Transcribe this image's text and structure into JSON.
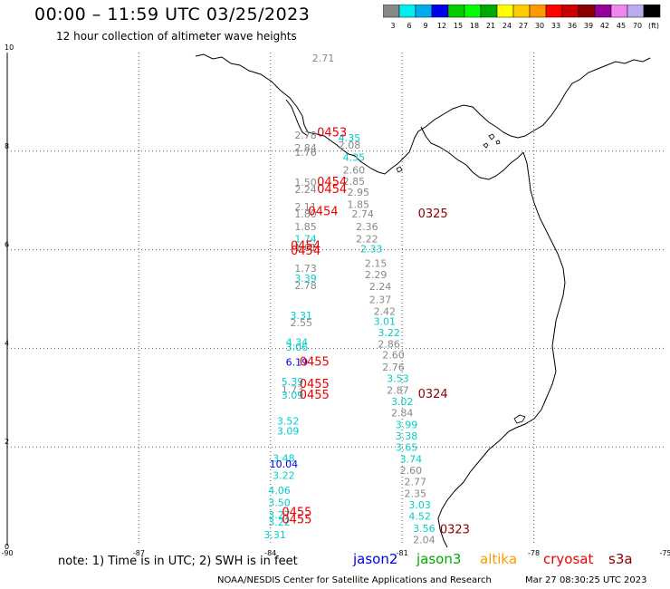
{
  "header": {
    "title": "00:00 – 11:59 UTC 03/25/2023",
    "subtitle": "12 hour collection of altimeter wave heights"
  },
  "colorbar": {
    "labels": [
      "3",
      "6",
      "9",
      "12",
      "15",
      "18",
      "21",
      "24",
      "27",
      "30",
      "33",
      "36",
      "39",
      "42",
      "45",
      "70",
      "(ft)"
    ],
    "colors": [
      "#888888",
      "#00eeee",
      "#00aaee",
      "#0000ee",
      "#00cc00",
      "#00ff00",
      "#00aa00",
      "#ffff00",
      "#ffcc00",
      "#ff9900",
      "#ff0000",
      "#cc0000",
      "#880000",
      "#990099",
      "#ee88ee",
      "#bbaaee",
      "#000000"
    ]
  },
  "axes": {
    "lon_labels": [
      "-90",
      "-87",
      "-84",
      "-81",
      "-78",
      "-75"
    ],
    "lat_labels": [
      "10",
      "8",
      "6",
      "4",
      "2",
      "0"
    ],
    "lon_range": [
      -90,
      -75
    ],
    "lat_range": [
      0,
      10
    ],
    "grid": true
  },
  "passes": [
    {
      "label": "0453",
      "lon": -82.6,
      "lat": 8.3,
      "color": "#ee0000"
    },
    {
      "label": "0454",
      "lon": -82.6,
      "lat": 7.3,
      "color": "#ee0000"
    },
    {
      "label": "0454",
      "lon": -82.6,
      "lat": 7.15,
      "color": "#ee0000"
    },
    {
      "label": "0454",
      "lon": -82.8,
      "lat": 6.7,
      "color": "#ee0000"
    },
    {
      "label": "0454",
      "lon": -83.2,
      "lat": 6.0,
      "color": "#ee0000"
    },
    {
      "label": "0454",
      "lon": -83.2,
      "lat": 5.9,
      "color": "#ee0000"
    },
    {
      "label": "0455",
      "lon": -83.0,
      "lat": 3.65,
      "color": "#ee0000"
    },
    {
      "label": "0455",
      "lon": -83.0,
      "lat": 3.2,
      "color": "#ee0000"
    },
    {
      "label": "0455",
      "lon": -83.0,
      "lat": 2.98,
      "color": "#ee0000"
    },
    {
      "label": "0455",
      "lon": -83.4,
      "lat": 0.6,
      "color": "#ee0000"
    },
    {
      "label": "0455",
      "lon": -83.4,
      "lat": 0.45,
      "color": "#ee0000"
    },
    {
      "label": "0325",
      "lon": -80.3,
      "lat": 6.65,
      "color": "#880000"
    },
    {
      "label": "0324",
      "lon": -80.3,
      "lat": 3.0,
      "color": "#880000"
    },
    {
      "label": "0323",
      "lon": -79.8,
      "lat": 0.25,
      "color": "#880000"
    }
  ],
  "wave_heights": [
    {
      "v": "2.71",
      "lon": -82.8,
      "lat": 9.82,
      "color": "#888888"
    },
    {
      "v": "2.78",
      "lon": -83.2,
      "lat": 8.25,
      "color": "#888888"
    },
    {
      "v": "4.35",
      "lon": -82.2,
      "lat": 8.2,
      "color": "#00cccc"
    },
    {
      "v": "2.84",
      "lon": -83.2,
      "lat": 8.0,
      "color": "#888888"
    },
    {
      "v": "2.08",
      "lon": -82.2,
      "lat": 8.05,
      "color": "#888888"
    },
    {
      "v": "1.76",
      "lon": -83.2,
      "lat": 7.9,
      "color": "#888888"
    },
    {
      "v": "4.35",
      "lon": -82.1,
      "lat": 7.8,
      "color": "#00cccc"
    },
    {
      "v": "2.60",
      "lon": -82.1,
      "lat": 7.55,
      "color": "#888888"
    },
    {
      "v": "2.85",
      "lon": -82.1,
      "lat": 7.32,
      "color": "#888888"
    },
    {
      "v": "1.50",
      "lon": -83.2,
      "lat": 7.3,
      "color": "#888888"
    },
    {
      "v": "2.24",
      "lon": -83.2,
      "lat": 7.15,
      "color": "#888888"
    },
    {
      "v": "2.95",
      "lon": -82.0,
      "lat": 7.1,
      "color": "#888888"
    },
    {
      "v": "1.85",
      "lon": -82.0,
      "lat": 6.85,
      "color": "#888888"
    },
    {
      "v": "2.11",
      "lon": -83.2,
      "lat": 6.8,
      "color": "#888888"
    },
    {
      "v": "1.80",
      "lon": -83.2,
      "lat": 6.65,
      "color": "#888888"
    },
    {
      "v": "2.74",
      "lon": -81.9,
      "lat": 6.65,
      "color": "#888888"
    },
    {
      "v": "1.85",
      "lon": -83.2,
      "lat": 6.4,
      "color": "#888888"
    },
    {
      "v": "2.36",
      "lon": -81.8,
      "lat": 6.4,
      "color": "#888888"
    },
    {
      "v": "1.74",
      "lon": -83.2,
      "lat": 6.15,
      "color": "#00cccc"
    },
    {
      "v": "2.22",
      "lon": -81.8,
      "lat": 6.15,
      "color": "#888888"
    },
    {
      "v": "1.61",
      "lon": -83.2,
      "lat": 5.97,
      "color": "#888888"
    },
    {
      "v": "2.33",
      "lon": -81.7,
      "lat": 5.95,
      "color": "#00cccc"
    },
    {
      "v": "2.15",
      "lon": -81.6,
      "lat": 5.65,
      "color": "#888888"
    },
    {
      "v": "1.73",
      "lon": -83.2,
      "lat": 5.55,
      "color": "#888888"
    },
    {
      "v": "2.29",
      "lon": -81.6,
      "lat": 5.42,
      "color": "#888888"
    },
    {
      "v": "3.39",
      "lon": -83.2,
      "lat": 5.35,
      "color": "#00cccc"
    },
    {
      "v": "2.78",
      "lon": -83.2,
      "lat": 5.2,
      "color": "#888888"
    },
    {
      "v": "2.24",
      "lon": -81.5,
      "lat": 5.18,
      "color": "#888888"
    },
    {
      "v": "2.37",
      "lon": -81.5,
      "lat": 4.92,
      "color": "#888888"
    },
    {
      "v": "2.42",
      "lon": -81.4,
      "lat": 4.68,
      "color": "#888888"
    },
    {
      "v": "3.31",
      "lon": -83.3,
      "lat": 4.6,
      "color": "#00cccc"
    },
    {
      "v": "3.01",
      "lon": -81.4,
      "lat": 4.48,
      "color": "#00cccc"
    },
    {
      "v": "2.55",
      "lon": -83.3,
      "lat": 4.45,
      "color": "#888888"
    },
    {
      "v": "3.22",
      "lon": -81.3,
      "lat": 4.25,
      "color": "#00cccc"
    },
    {
      "v": "4.34",
      "lon": -83.4,
      "lat": 4.05,
      "color": "#00cccc"
    },
    {
      "v": "2.86",
      "lon": -81.3,
      "lat": 4.02,
      "color": "#888888"
    },
    {
      "v": "3.06",
      "lon": -83.4,
      "lat": 3.95,
      "color": "#00cccc"
    },
    {
      "v": "2.60",
      "lon": -81.2,
      "lat": 3.8,
      "color": "#888888"
    },
    {
      "v": "6.19",
      "lon": -83.4,
      "lat": 3.65,
      "color": "#0000ee"
    },
    {
      "v": "2.76",
      "lon": -81.2,
      "lat": 3.55,
      "color": "#888888"
    },
    {
      "v": "3.53",
      "lon": -81.1,
      "lat": 3.32,
      "color": "#00cccc"
    },
    {
      "v": "5.39",
      "lon": -83.5,
      "lat": 3.25,
      "color": "#00cccc"
    },
    {
      "v": "1.73",
      "lon": -83.5,
      "lat": 3.1,
      "color": "#888888"
    },
    {
      "v": "2.87",
      "lon": -81.1,
      "lat": 3.08,
      "color": "#888888"
    },
    {
      "v": "3.09",
      "lon": -83.5,
      "lat": 2.98,
      "color": "#00cccc"
    },
    {
      "v": "3.02",
      "lon": -81.0,
      "lat": 2.85,
      "color": "#00cccc"
    },
    {
      "v": "2.84",
      "lon": -81.0,
      "lat": 2.62,
      "color": "#888888"
    },
    {
      "v": "3.52",
      "lon": -83.6,
      "lat": 2.45,
      "color": "#00cccc"
    },
    {
      "v": "3.99",
      "lon": -80.9,
      "lat": 2.38,
      "color": "#00cccc"
    },
    {
      "v": "3.09",
      "lon": -83.6,
      "lat": 2.25,
      "color": "#00cccc"
    },
    {
      "v": "3.38",
      "lon": -80.9,
      "lat": 2.15,
      "color": "#00cccc"
    },
    {
      "v": "3.65",
      "lon": -80.9,
      "lat": 1.92,
      "color": "#00cccc"
    },
    {
      "v": "3.48",
      "lon": -83.7,
      "lat": 1.7,
      "color": "#00cccc"
    },
    {
      "v": "3.74",
      "lon": -80.8,
      "lat": 1.68,
      "color": "#00cccc"
    },
    {
      "v": "10.04",
      "lon": -83.7,
      "lat": 1.58,
      "color": "#0000ee"
    },
    {
      "v": "2.60",
      "lon": -80.8,
      "lat": 1.45,
      "color": "#888888"
    },
    {
      "v": "3.22",
      "lon": -83.7,
      "lat": 1.35,
      "color": "#00cccc"
    },
    {
      "v": "2.77",
      "lon": -80.7,
      "lat": 1.22,
      "color": "#888888"
    },
    {
      "v": "4.06",
      "lon": -83.8,
      "lat": 1.05,
      "color": "#00cccc"
    },
    {
      "v": "2.35",
      "lon": -80.7,
      "lat": 0.98,
      "color": "#888888"
    },
    {
      "v": "3.50",
      "lon": -83.8,
      "lat": 0.8,
      "color": "#00cccc"
    },
    {
      "v": "3.03",
      "lon": -80.6,
      "lat": 0.75,
      "color": "#00cccc"
    },
    {
      "v": "3.27",
      "lon": -83.8,
      "lat": 0.55,
      "color": "#00cccc"
    },
    {
      "v": "4.52",
      "lon": -80.6,
      "lat": 0.52,
      "color": "#00cccc"
    },
    {
      "v": "3.22",
      "lon": -83.8,
      "lat": 0.4,
      "color": "#00cccc"
    },
    {
      "v": "3.56",
      "lon": -80.5,
      "lat": 0.28,
      "color": "#00cccc"
    },
    {
      "v": "3.31",
      "lon": -83.9,
      "lat": 0.15,
      "color": "#00cccc"
    },
    {
      "v": "2.04",
      "lon": -80.5,
      "lat": 0.05,
      "color": "#888888"
    }
  ],
  "footer": {
    "note": "note: 1) Time is in UTC; 2) SWH is in feet",
    "missions": [
      {
        "name": "jason2",
        "color": "#0000ee"
      },
      {
        "name": "jason3",
        "color": "#00aa00"
      },
      {
        "name": "altika",
        "color": "#ff9900"
      },
      {
        "name": "cryosat",
        "color": "#ee0000"
      },
      {
        "name": "s3a",
        "color": "#880000"
      }
    ],
    "credit": "NOAA/NESDIS Center for Satellite Applications and Research",
    "timestamp": "Mar 27 08:30:25 UTC 2023"
  }
}
